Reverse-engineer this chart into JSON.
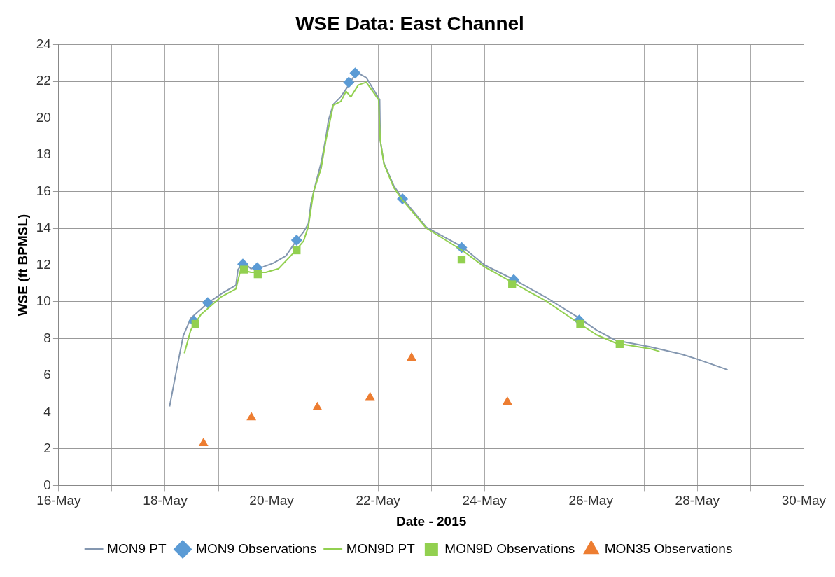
{
  "chart_data": {
    "type": "line",
    "title": "WSE Data: East Channel",
    "xlabel": "Date - 2015",
    "ylabel": "WSE (ft BPMSL)",
    "xlim": [
      "2015-05-16",
      "2015-05-30"
    ],
    "xticks": [
      {
        "value": "2015-05-16",
        "label": "16-May"
      },
      {
        "value": "2015-05-17",
        "label": null
      },
      {
        "value": "2015-05-18",
        "label": "18-May"
      },
      {
        "value": "2015-05-19",
        "label": null
      },
      {
        "value": "2015-05-20",
        "label": "20-May"
      },
      {
        "value": "2015-05-21",
        "label": null
      },
      {
        "value": "2015-05-22",
        "label": "22-May"
      },
      {
        "value": "2015-05-23",
        "label": null
      },
      {
        "value": "2015-05-24",
        "label": "24-May"
      },
      {
        "value": "2015-05-25",
        "label": null
      },
      {
        "value": "2015-05-26",
        "label": "26-May"
      },
      {
        "value": "2015-05-27",
        "label": null
      },
      {
        "value": "2015-05-28",
        "label": "28-May"
      },
      {
        "value": "2015-05-29",
        "label": null
      },
      {
        "value": "2015-05-30",
        "label": "30-May"
      }
    ],
    "ylim": [
      0,
      24
    ],
    "yticks": [
      0,
      2,
      4,
      6,
      8,
      10,
      12,
      14,
      16,
      18,
      20,
      22,
      24
    ],
    "grid": true,
    "legend": "bottom",
    "series": [
      {
        "name": "MON9 PT",
        "type": "line",
        "color": "#8497b0",
        "marker": "none",
        "x": [
          "2015-05-18T02:00",
          "2015-05-18T04:50",
          "2015-05-18T08:10",
          "2015-05-18T11:30",
          "2015-05-18T19:26",
          "2015-05-19T02:10",
          "2015-05-19T07:55",
          "2015-05-19T08:50",
          "2015-05-19T11:17",
          "2015-05-19T14:40",
          "2015-05-19T20:10",
          "2015-05-20T00:45",
          "2015-05-20T06:30",
          "2015-05-20T11:00",
          "2015-05-20T14:25",
          "2015-05-20T16:35",
          "2015-05-20T17:45",
          "2015-05-20T19:55",
          "2015-05-20T22:19",
          "2015-05-21T00:30",
          "2015-05-21T01:40",
          "2015-05-21T03:50",
          "2015-05-21T07:10",
          "2015-05-21T10:50",
          "2015-05-21T14:10",
          "2015-05-21T18:43",
          "2015-05-22T00:15",
          "2015-05-22T00:45",
          "2015-05-22T01:00",
          "2015-05-22T02:40",
          "2015-05-22T07:10",
          "2015-05-22T10:35",
          "2015-05-22T21:50",
          "2015-05-23T13:55",
          "2015-05-24T00:00",
          "2015-05-24T13:25",
          "2015-05-25T04:20",
          "2015-05-25T18:58",
          "2015-05-26T02:40",
          "2015-05-26T11:17",
          "2015-05-27T02:40",
          "2015-05-27T16:50",
          "2015-05-27T23:31",
          "2015-05-28T13:40"
        ],
        "values": [
          4.3,
          6.1,
          8.15,
          9.1,
          9.95,
          10.5,
          10.9,
          11.75,
          12.15,
          11.8,
          11.9,
          12.1,
          12.5,
          13.3,
          13.8,
          14.25,
          15.35,
          16.45,
          17.55,
          18.95,
          19.9,
          20.75,
          21.15,
          21.8,
          22.5,
          22.2,
          21.1,
          21.0,
          18.8,
          17.55,
          16.3,
          15.7,
          14.05,
          13.0,
          12.0,
          11.2,
          10.2,
          9.1,
          8.45,
          7.9,
          7.55,
          7.15,
          6.9,
          6.3
        ]
      },
      {
        "name": "MON9 Observations",
        "type": "scatter",
        "color": "#5b9bd5",
        "marker": "diamond",
        "x": [
          "2015-05-18T12:58",
          "2015-05-18T19:12",
          "2015-05-19T11:02",
          "2015-05-19T17:31",
          "2015-05-20T11:17",
          "2015-05-21T10:48",
          "2015-05-21T13:41",
          "2015-05-22T11:02",
          "2015-05-23T13:41",
          "2015-05-24T13:12",
          "2015-05-25T18:43"
        ],
        "values": [
          8.95,
          9.95,
          12.05,
          11.85,
          13.35,
          21.95,
          22.45,
          15.6,
          12.95,
          11.2,
          9.0
        ]
      },
      {
        "name": "MON9D PT",
        "type": "line",
        "color": "#92d050",
        "marker": "none",
        "x": [
          "2015-05-18T08:40",
          "2015-05-18T11:30",
          "2015-05-18T16:05",
          "2015-05-19T01:00",
          "2015-05-19T07:55",
          "2015-05-19T10:05",
          "2015-05-19T14:40",
          "2015-05-19T21:22",
          "2015-05-20T03:07",
          "2015-05-20T08:40",
          "2015-05-20T14:25",
          "2015-05-20T16:35",
          "2015-05-20T18:58",
          "2015-05-20T22:19",
          "2015-05-21T00:30",
          "2015-05-21T03:50",
          "2015-05-21T07:10",
          "2015-05-21T09:36",
          "2015-05-21T11:45",
          "2015-05-21T15:07",
          "2015-05-21T18:43",
          "2015-05-22T00:15",
          "2015-05-22T01:00",
          "2015-05-22T02:40",
          "2015-05-22T07:10",
          "2015-05-22T10:35",
          "2015-05-22T21:50",
          "2015-05-23T13:55",
          "2015-05-24T00:00",
          "2015-05-24T13:25",
          "2015-05-25T04:20",
          "2015-05-25T18:58",
          "2015-05-26T02:40",
          "2015-05-26T11:17",
          "2015-05-27T02:40",
          "2015-05-27T06:58"
        ],
        "values": [
          7.2,
          8.45,
          9.3,
          10.25,
          10.7,
          11.75,
          11.6,
          11.6,
          11.8,
          12.5,
          13.3,
          14.1,
          16.0,
          17.25,
          18.8,
          20.7,
          20.9,
          21.45,
          21.15,
          21.8,
          21.95,
          21.0,
          18.8,
          17.5,
          16.2,
          15.6,
          14.0,
          12.8,
          11.9,
          11.0,
          10.0,
          8.8,
          8.2,
          7.75,
          7.45,
          7.3
        ]
      },
      {
        "name": "MON9D Observations",
        "type": "scatter",
        "color": "#92d050",
        "marker": "square",
        "x": [
          "2015-05-18T13:41",
          "2015-05-19T11:31",
          "2015-05-19T17:46",
          "2015-05-20T11:17",
          "2015-05-23T13:41",
          "2015-05-24T12:29",
          "2015-05-25T19:12",
          "2015-05-26T12:58"
        ],
        "values": [
          8.8,
          11.75,
          11.5,
          12.8,
          12.3,
          10.95,
          8.8,
          7.7
        ]
      },
      {
        "name": "MON35 Observations",
        "type": "scatter",
        "color": "#ed7d31",
        "marker": "triangle",
        "x": [
          "2015-05-18T17:17",
          "2015-05-19T14:53",
          "2015-05-20T20:38",
          "2015-05-21T20:24",
          "2015-05-22T15:07",
          "2015-05-24T10:19"
        ],
        "values": [
          2.3,
          3.7,
          4.25,
          4.8,
          6.95,
          4.55
        ]
      }
    ]
  }
}
